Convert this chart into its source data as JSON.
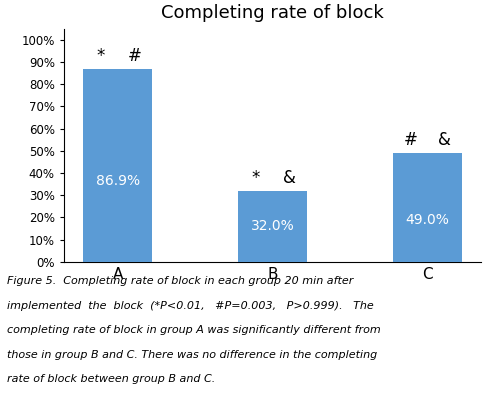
{
  "title": "Completing rate of block",
  "categories": [
    "A",
    "B",
    "C"
  ],
  "values": [
    0.869,
    0.32,
    0.49
  ],
  "bar_labels": [
    "86.9%",
    "32.0%",
    "49.0%"
  ],
  "bar_color": "#5B9BD5",
  "ylim": [
    0,
    1.05
  ],
  "yticks": [
    0.0,
    0.1,
    0.2,
    0.3,
    0.4,
    0.5,
    0.6,
    0.7,
    0.8,
    0.9,
    1.0
  ],
  "yticklabels": [
    "0%",
    "10%",
    "20%",
    "30%",
    "40%",
    "50%",
    "60%",
    "70%",
    "80%",
    "90%",
    "100%"
  ],
  "annotations": {
    "A": [
      "*",
      "#"
    ],
    "B": [
      "*",
      "&"
    ],
    "C": [
      "#",
      "&"
    ]
  },
  "caption": "Figure 5.  Completing rate of block in each group 20 min after implemented  the  block  (*P<0.01,   #P=0.003,   P>0.999).   The completing rate of block in group A was significantly different from those in group B and C. There was no difference in the completing rate of block between group B and C.",
  "background_color": "#ffffff",
  "title_fontsize": 13,
  "bar_label_fontsize": 10,
  "annotation_fontsize": 12,
  "caption_fontsize": 8
}
